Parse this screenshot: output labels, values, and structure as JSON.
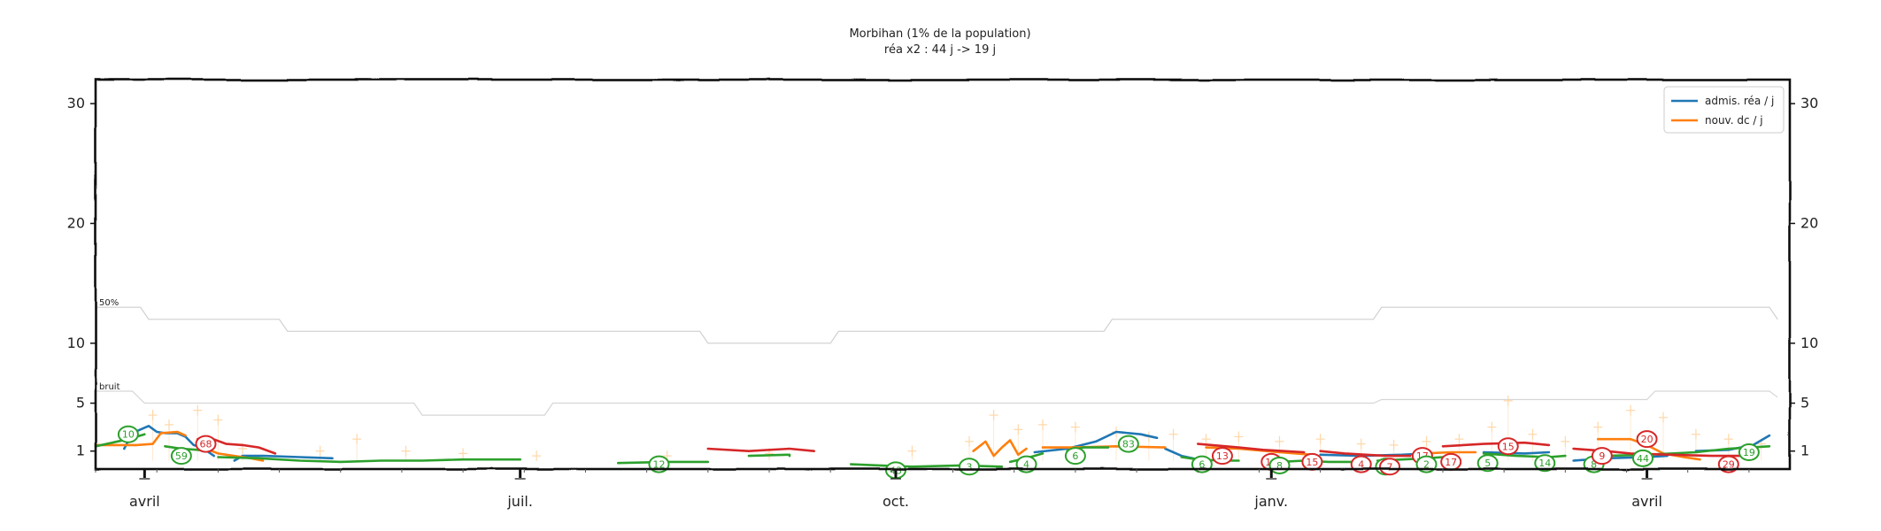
{
  "chart_data": {
    "type": "line",
    "title": "Morbihan (1% de la population)",
    "subtitle": "réa x2 : 44 j -> 19 j",
    "x_ticks": [
      "avril",
      "juil.",
      "oct.",
      "janv.",
      "avril"
    ],
    "y_ticks": [
      1,
      5,
      10,
      20,
      30
    ],
    "y_range": [
      -0.5,
      32
    ],
    "x_range": [
      0,
      415
    ],
    "legend": {
      "placement": "top-right",
      "entries": [
        {
          "label": "admis. réa / j",
          "color": "#1f77b4"
        },
        {
          "label": "nouv. dc / j",
          "color": "#ff7f0e"
        }
      ]
    },
    "reference_lines": [
      {
        "label": "50%",
        "color": "#cfcfcf",
        "points": [
          [
            0,
            13
          ],
          [
            11,
            13
          ],
          [
            13,
            12
          ],
          [
            45,
            12
          ],
          [
            47,
            11
          ],
          [
            148,
            11
          ],
          [
            150,
            10
          ],
          [
            180,
            10
          ],
          [
            182,
            11
          ],
          [
            247,
            11
          ],
          [
            249,
            12
          ],
          [
            313,
            12
          ],
          [
            315,
            13
          ],
          [
            410,
            13
          ],
          [
            412,
            12
          ]
        ]
      },
      {
        "label": "bruit",
        "color": "#d6d6d6",
        "points": [
          [
            0,
            6
          ],
          [
            9,
            6
          ],
          [
            12,
            5
          ],
          [
            78,
            5
          ],
          [
            80,
            4
          ],
          [
            110,
            4
          ],
          [
            112,
            5
          ],
          [
            313,
            5
          ],
          [
            315,
            5.3
          ],
          [
            380,
            5.3
          ],
          [
            382,
            6
          ],
          [
            410,
            6
          ],
          [
            412,
            5.5
          ]
        ]
      }
    ],
    "series": [
      {
        "name": "admis. réa / j",
        "color": "#1f77b4",
        "segments": [
          [
            [
              7,
              1.2
            ],
            [
              9,
              2.5
            ],
            [
              11,
              2.8
            ],
            [
              13,
              3.1
            ],
            [
              15,
              2.6
            ],
            [
              17,
              2.5
            ],
            [
              20,
              2.5
            ],
            [
              22,
              2.2
            ],
            [
              24,
              1.5
            ],
            [
              26,
              1.3
            ],
            [
              29,
              0.6
            ]
          ],
          [
            [
              34,
              0.2
            ],
            [
              36,
              0.6
            ],
            [
              41,
              0.6
            ],
            [
              50,
              0.5
            ],
            [
              58,
              0.4
            ]
          ],
          [
            [
              230,
              0.9
            ],
            [
              238,
              1.2
            ],
            [
              245,
              1.8
            ],
            [
              250,
              2.6
            ],
            [
              256,
              2.4
            ],
            [
              260,
              2.1
            ]
          ],
          [
            [
              262,
              1.2
            ],
            [
              266,
              0.6
            ],
            [
              270,
              0.3
            ]
          ],
          [
            [
              300,
              0.7
            ],
            [
              310,
              0.6
            ],
            [
              320,
              0.7
            ],
            [
              326,
              0.8
            ]
          ],
          [
            [
              340,
              0.9
            ],
            [
              350,
              0.8
            ],
            [
              356,
              0.9
            ]
          ],
          [
            [
              362,
              0.2
            ],
            [
              370,
              0.4
            ],
            [
              380,
              0.5
            ],
            [
              385,
              0.6
            ]
          ],
          [
            [
              392,
              1.0
            ],
            [
              400,
              1.1
            ],
            [
              406,
              1.5
            ],
            [
              410,
              2.3
            ]
          ]
        ]
      },
      {
        "name": "nouv. dc / j",
        "color": "#ff7f0e",
        "segments": [
          [
            [
              0,
              1.5
            ],
            [
              10,
              1.5
            ],
            [
              14,
              1.6
            ],
            [
              16,
              2.5
            ],
            [
              20,
              2.6
            ],
            [
              22,
              2.3
            ]
          ],
          [
            [
              27,
              1.2
            ],
            [
              30,
              0.8
            ],
            [
              34,
              0.6
            ],
            [
              38,
              0.4
            ],
            [
              41,
              0.2
            ]
          ],
          [
            [
              215,
              1.0
            ],
            [
              218,
              1.8
            ],
            [
              220,
              0.6
            ],
            [
              222,
              1.3
            ],
            [
              224,
              1.9
            ],
            [
              226,
              0.7
            ],
            [
              228,
              1.2
            ]
          ],
          [
            [
              232,
              1.3
            ],
            [
              240,
              1.3
            ],
            [
              250,
              1.4
            ],
            [
              262,
              1.3
            ]
          ],
          [
            [
              272,
              1.3
            ],
            [
              280,
              1.2
            ],
            [
              290,
              0.9
            ],
            [
              298,
              0.7
            ]
          ],
          [
            [
              325,
              0.8
            ],
            [
              332,
              0.9
            ],
            [
              338,
              0.9
            ]
          ],
          [
            [
              368,
              2.0
            ],
            [
              376,
              2.0
            ],
            [
              380,
              1.5
            ],
            [
              384,
              0.8
            ],
            [
              389,
              0.5
            ],
            [
              393,
              0.3
            ]
          ]
        ]
      },
      {
        "name": "",
        "color": "#2ca02c",
        "segments": [
          [
            [
              0,
              1.4
            ],
            [
              8,
              2.0
            ],
            [
              12,
              2.4
            ]
          ],
          [
            [
              17,
              1.4
            ],
            [
              21,
              1.2
            ],
            [
              25,
              1.1
            ],
            [
              28,
              1.0
            ]
          ],
          [
            [
              30,
              0.5
            ],
            [
              40,
              0.4
            ],
            [
              50,
              0.2
            ],
            [
              60,
              0.1
            ],
            [
              70,
              0.2
            ],
            [
              80,
              0.2
            ],
            [
              90,
              0.3
            ],
            [
              100,
              0.3
            ],
            [
              104,
              0.3
            ]
          ],
          [
            [
              128,
              0.0
            ],
            [
              140,
              0.1
            ],
            [
              150,
              0.1
            ]
          ],
          [
            [
              160,
              0.6
            ],
            [
              170,
              0.7
            ],
            [
              170,
              0.6
            ]
          ],
          [
            [
              185,
              -0.1
            ],
            [
              192,
              -0.2
            ],
            [
              200,
              -0.3
            ],
            [
              212,
              -0.2
            ],
            [
              222,
              -0.3
            ]
          ],
          [
            [
              224,
              0.1
            ],
            [
              228,
              0.4
            ],
            [
              232,
              0.8
            ]
          ],
          [
            [
              238,
              1.0
            ],
            [
              242,
              1.3
            ],
            [
              248,
              1.3
            ]
          ],
          [
            [
              266,
              0.5
            ],
            [
              270,
              0.3
            ],
            [
              276,
              0.2
            ],
            [
              280,
              0.2
            ]
          ],
          [
            [
              290,
              0.1
            ],
            [
              296,
              0.2
            ],
            [
              302,
              0.1
            ],
            [
              308,
              0.1
            ]
          ],
          [
            [
              314,
              0.2
            ],
            [
              320,
              0.3
            ],
            [
              326,
              0.4
            ],
            [
              330,
              0.5
            ]
          ],
          [
            [
              340,
              0.8
            ],
            [
              348,
              0.6
            ],
            [
              356,
              0.5
            ],
            [
              360,
              0.6
            ]
          ],
          [
            [
              370,
              0.6
            ],
            [
              380,
              0.7
            ],
            [
              392,
              0.9
            ],
            [
              400,
              1.2
            ],
            [
              410,
              1.4
            ]
          ]
        ]
      },
      {
        "name": "",
        "color": "#d62728",
        "segments": [
          [
            [
              25,
              2.0
            ],
            [
              28,
              2.1
            ],
            [
              32,
              1.6
            ],
            [
              36,
              1.5
            ],
            [
              40,
              1.3
            ],
            [
              44,
              0.8
            ]
          ],
          [
            [
              150,
              1.2
            ],
            [
              160,
              1.0
            ],
            [
              170,
              1.2
            ],
            [
              176,
              1.0
            ]
          ],
          [
            [
              270,
              1.6
            ],
            [
              280,
              1.3
            ],
            [
              286,
              1.1
            ],
            [
              296,
              0.9
            ]
          ],
          [
            [
              300,
              1.0
            ],
            [
              306,
              0.8
            ],
            [
              316,
              0.6
            ],
            [
              322,
              0.6
            ]
          ],
          [
            [
              330,
              1.4
            ],
            [
              340,
              1.6
            ],
            [
              350,
              1.7
            ],
            [
              356,
              1.5
            ]
          ],
          [
            [
              362,
              1.2
            ],
            [
              370,
              1.0
            ],
            [
              376,
              0.8
            ],
            [
              386,
              0.7
            ],
            [
              396,
              0.6
            ],
            [
              404,
              0.6
            ]
          ]
        ]
      }
    ],
    "annotations": [
      {
        "text": "10",
        "x": 8,
        "y": 2.4,
        "color": "#2ca02c"
      },
      {
        "text": "59",
        "x": 21,
        "y": 0.6,
        "color": "#2ca02c"
      },
      {
        "text": "68",
        "x": 27,
        "y": 1.6,
        "color": "#d62728"
      },
      {
        "text": "12",
        "x": 138,
        "y": -0.1,
        "color": "#2ca02c"
      },
      {
        "text": "43",
        "x": 196,
        "y": -0.6,
        "color": "#2ca02c"
      },
      {
        "text": "3",
        "x": 214,
        "y": -0.3,
        "color": "#2ca02c"
      },
      {
        "text": "4",
        "x": 228,
        "y": -0.1,
        "color": "#2ca02c"
      },
      {
        "text": "6",
        "x": 240,
        "y": 0.6,
        "color": "#2ca02c"
      },
      {
        "text": "83",
        "x": 253,
        "y": 1.6,
        "color": "#2ca02c"
      },
      {
        "text": "6",
        "x": 271,
        "y": -0.1,
        "color": "#2ca02c"
      },
      {
        "text": "13",
        "x": 276,
        "y": 0.6,
        "color": "#d62728"
      },
      {
        "text": "11",
        "x": 288,
        "y": 0.1,
        "color": "#d62728"
      },
      {
        "text": "8",
        "x": 290,
        "y": -0.2,
        "color": "#2ca02c"
      },
      {
        "text": "15",
        "x": 298,
        "y": 0.1,
        "color": "#d62728"
      },
      {
        "text": "4",
        "x": 310,
        "y": -0.1,
        "color": "#d62728"
      },
      {
        "text": "4",
        "x": 316,
        "y": -0.3,
        "color": "#2ca02c"
      },
      {
        "text": "7",
        "x": 317,
        "y": -0.3,
        "color": "#d62728"
      },
      {
        "text": "17",
        "x": 325,
        "y": 0.6,
        "color": "#d62728"
      },
      {
        "text": "2",
        "x": 326,
        "y": -0.1,
        "color": "#2ca02c"
      },
      {
        "text": "17",
        "x": 332,
        "y": 0.1,
        "color": "#d62728"
      },
      {
        "text": "5",
        "x": 341,
        "y": 0.0,
        "color": "#2ca02c"
      },
      {
        "text": "15",
        "x": 346,
        "y": 1.4,
        "color": "#d62728"
      },
      {
        "text": "14",
        "x": 355,
        "y": 0.0,
        "color": "#2ca02c"
      },
      {
        "text": "8",
        "x": 367,
        "y": -0.1,
        "color": "#2ca02c"
      },
      {
        "text": "9",
        "x": 369,
        "y": 0.6,
        "color": "#d62728"
      },
      {
        "text": "20",
        "x": 380,
        "y": 2.0,
        "color": "#d62728"
      },
      {
        "text": "44",
        "x": 379,
        "y": 0.4,
        "color": "#2ca02c"
      },
      {
        "text": "29",
        "x": 400,
        "y": -0.1,
        "color": "#d62728"
      },
      {
        "text": "19",
        "x": 405,
        "y": 0.9,
        "color": "#2ca02c"
      }
    ],
    "noise_markers": [
      {
        "x": 14,
        "y": 4.0
      },
      {
        "x": 18,
        "y": 3.2
      },
      {
        "x": 25,
        "y": 4.4
      },
      {
        "x": 30,
        "y": 3.6
      },
      {
        "x": 36,
        "y": 1.2
      },
      {
        "x": 55,
        "y": 1.0
      },
      {
        "x": 64,
        "y": 2.0
      },
      {
        "x": 76,
        "y": 1.0
      },
      {
        "x": 90,
        "y": 0.8
      },
      {
        "x": 108,
        "y": 0.6
      },
      {
        "x": 140,
        "y": 0.6
      },
      {
        "x": 165,
        "y": 0.8
      },
      {
        "x": 200,
        "y": 1.0
      },
      {
        "x": 214,
        "y": 1.8
      },
      {
        "x": 220,
        "y": 4.0
      },
      {
        "x": 226,
        "y": 2.8
      },
      {
        "x": 232,
        "y": 3.2
      },
      {
        "x": 240,
        "y": 3.0
      },
      {
        "x": 250,
        "y": 2.6
      },
      {
        "x": 258,
        "y": 2.2
      },
      {
        "x": 264,
        "y": 2.4
      },
      {
        "x": 272,
        "y": 2.0
      },
      {
        "x": 280,
        "y": 2.2
      },
      {
        "x": 290,
        "y": 1.8
      },
      {
        "x": 300,
        "y": 2.0
      },
      {
        "x": 310,
        "y": 1.6
      },
      {
        "x": 318,
        "y": 1.5
      },
      {
        "x": 326,
        "y": 1.8
      },
      {
        "x": 334,
        "y": 2.0
      },
      {
        "x": 342,
        "y": 3.0
      },
      {
        "x": 346,
        "y": 5.2
      },
      {
        "x": 352,
        "y": 2.4
      },
      {
        "x": 360,
        "y": 1.8
      },
      {
        "x": 368,
        "y": 3.0
      },
      {
        "x": 376,
        "y": 4.4
      },
      {
        "x": 384,
        "y": 3.8
      },
      {
        "x": 392,
        "y": 2.4
      },
      {
        "x": 400,
        "y": 2.0
      },
      {
        "x": 408,
        "y": 1.6
      }
    ]
  }
}
